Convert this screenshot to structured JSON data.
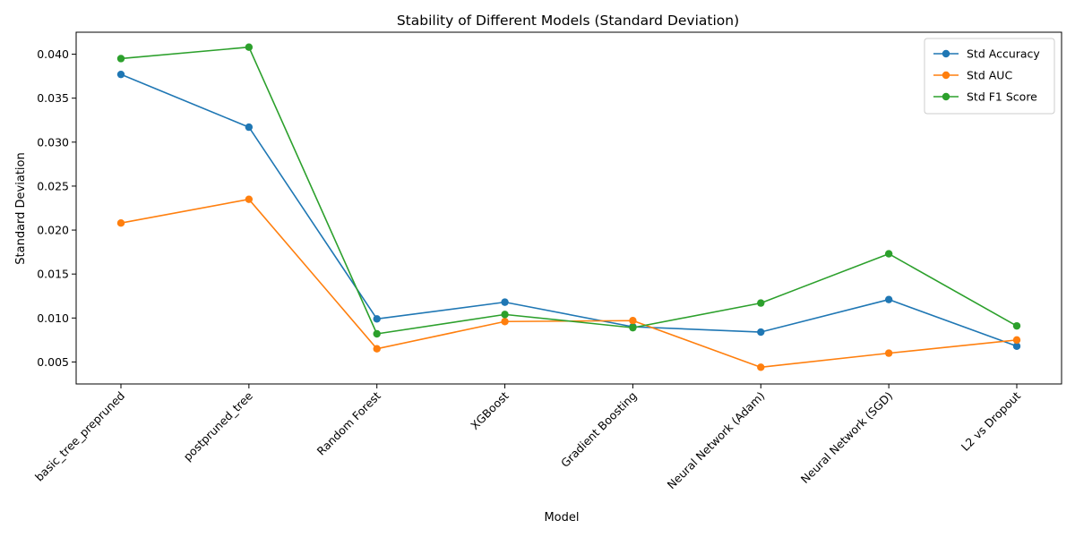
{
  "chart_data": {
    "type": "line",
    "title": "Stability of Different Models (Standard Deviation)",
    "xlabel": "Model",
    "ylabel": "Standard Deviation",
    "categories": [
      "basic_tree_prepruned",
      "postpruned_tree",
      "Random Forest",
      "XGBoost",
      "Gradient Boosting",
      "Neural Network (Adam)",
      "Neural Network (SGD)",
      "L2 vs Dropout"
    ],
    "ylim": [
      0.0025,
      0.0425
    ],
    "yticks": [
      0.005,
      0.01,
      0.015,
      0.02,
      0.025,
      0.03,
      0.035,
      0.04
    ],
    "ytick_labels": [
      "0.005",
      "0.010",
      "0.015",
      "0.020",
      "0.025",
      "0.030",
      "0.035",
      "0.040"
    ],
    "grid": false,
    "legend_position": "top-right",
    "series": [
      {
        "name": "Std Accuracy",
        "color": "#1f77b4",
        "values": [
          0.0377,
          0.0317,
          0.0099,
          0.0118,
          0.009,
          0.0084,
          0.0121,
          0.0068
        ]
      },
      {
        "name": "Std AUC",
        "color": "#ff7f0e",
        "values": [
          0.0208,
          0.0235,
          0.0065,
          0.0096,
          0.0097,
          0.0044,
          0.006,
          0.0075
        ]
      },
      {
        "name": "Std F1 Score",
        "color": "#2ca02c",
        "values": [
          0.0395,
          0.0408,
          0.0082,
          0.0104,
          0.0089,
          0.0117,
          0.0173,
          0.0091
        ]
      }
    ]
  }
}
